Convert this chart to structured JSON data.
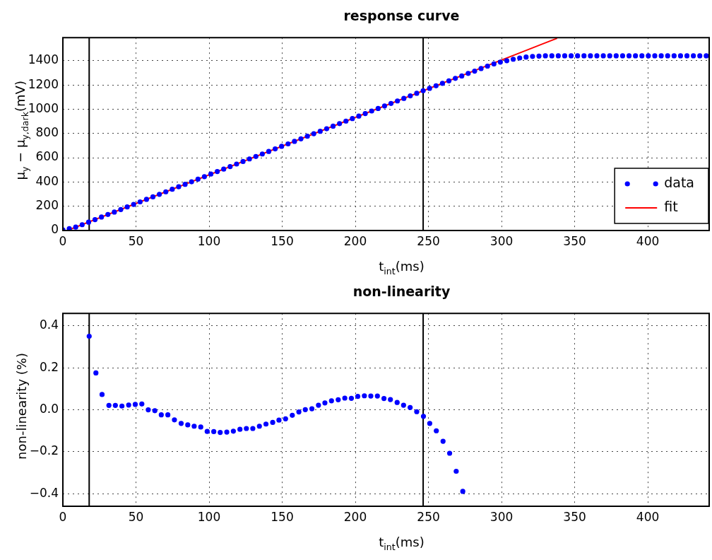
{
  "chart_data": [
    {
      "type": "scatter",
      "title": "response curve",
      "xlabel": "t$_{int}$(ms)",
      "ylabel": "μ$_{y}$ − μ$_{y,dark}$(mV)",
      "xlim": [
        0,
        442
      ],
      "xticks": [
        0,
        50,
        100,
        150,
        200,
        250,
        300,
        350,
        400
      ],
      "ylim": [
        0,
        1590
      ],
      "yticks": [
        0,
        200,
        400,
        600,
        800,
        1000,
        1200,
        1400
      ],
      "grid": true,
      "legend": "bottom right",
      "series": [
        {
          "name": "data",
          "type": "scatter",
          "marker": "circle",
          "color": "#0000ff",
          "x": [
            0,
            4.4,
            8.8,
            13.2,
            17.6,
            22,
            26.4,
            30.8,
            35.2,
            39.6,
            44,
            48.4,
            52.8,
            57.2,
            61.6,
            66,
            70.4,
            74.8,
            79.2,
            83.6,
            88,
            92.4,
            96.8,
            101.2,
            105.6,
            110,
            114.4,
            118.8,
            123.2,
            127.6,
            132,
            136.4,
            140.8,
            145.2,
            149.6,
            154,
            158.4,
            162.8,
            167.2,
            171.6,
            176,
            180.4,
            184.8,
            189.2,
            193.6,
            198,
            202.4,
            206.8,
            211.2,
            215.6,
            220,
            224.4,
            228.8,
            233.2,
            237.6,
            242,
            246.4,
            250.8,
            255.2,
            259.6,
            264,
            268.4,
            272.8,
            277.2,
            281.6,
            286,
            290.4,
            294.8,
            299.2,
            303.6,
            308,
            312.4,
            316.8,
            321.2,
            325.6,
            330,
            334.4,
            338.8,
            343.2,
            347.6,
            352,
            356.4,
            360.8,
            365.2,
            369.6,
            374,
            378.4,
            382.8,
            387.2,
            391.6,
            396,
            400.4,
            404.8,
            409.2,
            413.6,
            418,
            422.4,
            426.8,
            431.2,
            435.6,
            440
          ],
          "values": [
            5,
            15,
            28,
            48,
            69,
            90,
            111,
            132,
            152,
            173,
            194,
            215,
            236,
            257,
            277,
            298,
            319,
            340,
            361,
            381,
            402,
            423,
            444,
            465,
            486,
            506,
            527,
            548,
            569,
            590,
            610,
            631,
            652,
            673,
            694,
            714,
            735,
            756,
            777,
            798,
            818,
            839,
            860,
            881,
            902,
            923,
            943,
            964,
            985,
            1006,
            1027,
            1047,
            1068,
            1089,
            1110,
            1131,
            1152,
            1172,
            1193,
            1213,
            1234,
            1254,
            1274,
            1295,
            1314,
            1335,
            1355,
            1373,
            1388,
            1400,
            1412,
            1422,
            1430,
            1435,
            1438,
            1440,
            1440,
            1440,
            1440,
            1440,
            1440,
            1440,
            1440,
            1440,
            1440,
            1440,
            1440,
            1440,
            1440,
            1440,
            1440,
            1440,
            1440,
            1440,
            1440,
            1440,
            1440,
            1440,
            1440,
            1440,
            1440
          ]
        },
        {
          "name": "fit",
          "type": "line",
          "marker": "none",
          "color": "#ff0000",
          "x": [
            3,
            338
          ],
          "values": [
            0,
            1585
          ]
        }
      ],
      "ref_lines": [
        {
          "axis": "x",
          "value": 18,
          "color": "#000000"
        },
        {
          "axis": "x",
          "value": 246.4,
          "color": "#000000"
        }
      ]
    },
    {
      "type": "scatter",
      "title": "non-linearity",
      "xlabel": "t$_{int}$(ms)",
      "ylabel": "non-linearity (%)",
      "xlim": [
        0,
        442
      ],
      "xticks": [
        0,
        50,
        100,
        150,
        200,
        250,
        300,
        350,
        400
      ],
      "ylim": [
        -0.46,
        0.46
      ],
      "yticks": [
        {
          "value": -0.4,
          "label": "−0.4"
        },
        {
          "value": -0.2,
          "label": "−0.2"
        },
        {
          "value": 0,
          "label": "0.0"
        },
        {
          "value": 0.2,
          "label": "0.2"
        },
        {
          "value": 0.4,
          "label": "0.4"
        }
      ],
      "grid": true,
      "marker": "circle",
      "series": [
        {
          "color": "#0000ff",
          "x": [
            18,
            22.6,
            26.8,
            31.5,
            35.9,
            40.4,
            45,
            49.5,
            54,
            58.4,
            62.9,
            67.3,
            71.8,
            76.3,
            80.9,
            85.4,
            89.8,
            94.3,
            98.7,
            103.2,
            107.6,
            112.1,
            116.6,
            121.1,
            125.5,
            129.9,
            134.4,
            138.9,
            143.5,
            147.8,
            152.3,
            156.9,
            161.4,
            165.8,
            170.3,
            174.8,
            179.2,
            183.7,
            188.3,
            192.8,
            197.3,
            201.7,
            206.2,
            210.6,
            215.1,
            219.6,
            224,
            228.6,
            233,
            237.5,
            242,
            246.6,
            250.9,
            255.4,
            260,
            264.5,
            269,
            273.5
          ],
          "values": [
            0.351,
            0.176,
            0.073,
            0.021,
            0.021,
            0.018,
            0.023,
            0.026,
            0.028,
            0.0,
            -0.004,
            -0.024,
            -0.024,
            -0.048,
            -0.065,
            -0.072,
            -0.078,
            -0.082,
            -0.103,
            -0.104,
            -0.108,
            -0.106,
            -0.102,
            -0.093,
            -0.089,
            -0.089,
            -0.078,
            -0.068,
            -0.06,
            -0.049,
            -0.043,
            -0.026,
            -0.01,
            0.001,
            0.005,
            0.022,
            0.033,
            0.043,
            0.048,
            0.056,
            0.055,
            0.064,
            0.067,
            0.066,
            0.066,
            0.054,
            0.049,
            0.035,
            0.022,
            0.011,
            -0.009,
            -0.031,
            -0.065,
            -0.1,
            -0.15,
            -0.207,
            -0.293,
            -0.389
          ]
        }
      ],
      "ref_lines": [
        {
          "axis": "x",
          "value": 18,
          "color": "#000000"
        },
        {
          "axis": "x",
          "value": 246.4,
          "color": "#000000"
        }
      ]
    }
  ]
}
